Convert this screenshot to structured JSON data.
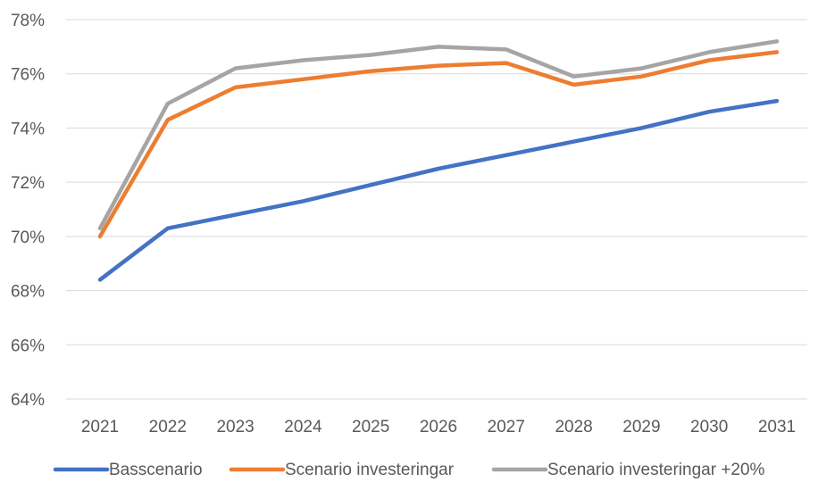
{
  "chart_data": {
    "type": "line",
    "title": "",
    "xlabel": "",
    "ylabel": "",
    "x": [
      "2021",
      "2022",
      "2023",
      "2024",
      "2025",
      "2026",
      "2027",
      "2028",
      "2029",
      "2030",
      "2031"
    ],
    "ylim": [
      64,
      78
    ],
    "yticks": [
      "64%",
      "66%",
      "68%",
      "70%",
      "72%",
      "74%",
      "76%",
      "78%"
    ],
    "grid": "horizontal",
    "legend_position": "bottom",
    "series": [
      {
        "name": "Basscenario",
        "color": "#4472C4",
        "values": [
          68.4,
          70.3,
          70.8,
          71.3,
          71.9,
          72.5,
          73.0,
          73.5,
          74.0,
          74.6,
          75.0
        ]
      },
      {
        "name": "Scenario investeringar",
        "color": "#ED7D31",
        "values": [
          70.0,
          74.3,
          75.5,
          75.8,
          76.1,
          76.3,
          76.4,
          75.6,
          75.9,
          76.5,
          76.8
        ]
      },
      {
        "name": "Scenario investeringar +20%",
        "color": "#A5A5A5",
        "values": [
          70.3,
          74.9,
          76.2,
          76.5,
          76.7,
          77.0,
          76.9,
          75.9,
          76.2,
          76.8,
          77.2
        ]
      }
    ]
  }
}
